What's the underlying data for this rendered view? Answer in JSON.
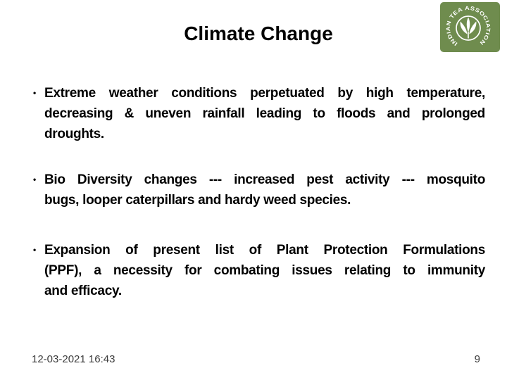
{
  "slide": {
    "title": "Climate Change",
    "bullets": [
      {
        "marker": "•",
        "lines": [
          "Extreme weather conditions perpetuated by high temperature,",
          "decreasing & uneven rainfall leading to floods and prolonged",
          "droughts."
        ]
      },
      {
        "marker": "•",
        "lines": [
          "Bio Diversity changes --- increased pest activity --- mosquito",
          "bugs, looper caterpillars and hardy weed species."
        ]
      },
      {
        "marker": "•",
        "lines": [
          "Expansion of present list of Plant Protection Formulations",
          "(PPF), a necessity for combating issues relating to immunity",
          "and efficacy."
        ]
      }
    ],
    "footer": {
      "datetime": "12-03-2021 16:43",
      "page_number": "9"
    },
    "logo": {
      "organization": "INDIAN TEA ASSOCIATION",
      "emblem": "tea-leaf-two-leaves-and-bud",
      "background_color": "#6f8c4e",
      "foreground_color": "#ffffff"
    },
    "colors": {
      "background": "#ffffff",
      "body_text": "#000000",
      "footer_text": "#3c3c3c",
      "logo_green": "#6f8c4e"
    }
  }
}
